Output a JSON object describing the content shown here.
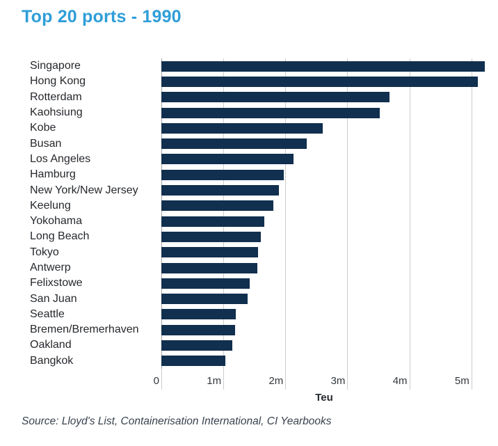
{
  "title": "Top 20 ports - 1990",
  "source_note": "Source: Lloyd's List, Containerisation International, CI Yearbooks",
  "colors": {
    "title": "#2f9ed8",
    "bar": "#112f4e",
    "grid": "#cdcdcd",
    "grid_zero": "#a3a3a3",
    "label": "#25282c",
    "tick": "#33373c",
    "source": "#39424e"
  },
  "chart_data": {
    "type": "bar",
    "orientation": "horizontal",
    "title": "Top 20 ports - 1990",
    "xlabel": "Teu",
    "ylabel": "",
    "unit": "million TEU",
    "xlim": [
      0,
      5.25
    ],
    "grid": true,
    "xticks": [
      {
        "value": 0,
        "label": "0"
      },
      {
        "value": 1,
        "label": "1m"
      },
      {
        "value": 2,
        "label": "2m"
      },
      {
        "value": 3,
        "label": "3m"
      },
      {
        "value": 4,
        "label": "4m"
      },
      {
        "value": 5,
        "label": "5m"
      }
    ],
    "categories": [
      "Singapore",
      "Hong Kong",
      "Rotterdam",
      "Kaohsiung",
      "Kobe",
      "Busan",
      "Los Angeles",
      "Hamburg",
      "New York/New Jersey",
      "Keelung",
      "Yokohama",
      "Long Beach",
      "Tokyo",
      "Antwerp",
      "Felixstowe",
      "San Juan",
      "Seattle",
      "Bremen/Bremerhaven",
      "Oakland",
      "Bangkok"
    ],
    "values": [
      5.22,
      5.1,
      3.68,
      3.52,
      2.6,
      2.35,
      2.13,
      1.97,
      1.9,
      1.81,
      1.66,
      1.6,
      1.56,
      1.55,
      1.43,
      1.39,
      1.2,
      1.19,
      1.14,
      1.03
    ]
  }
}
